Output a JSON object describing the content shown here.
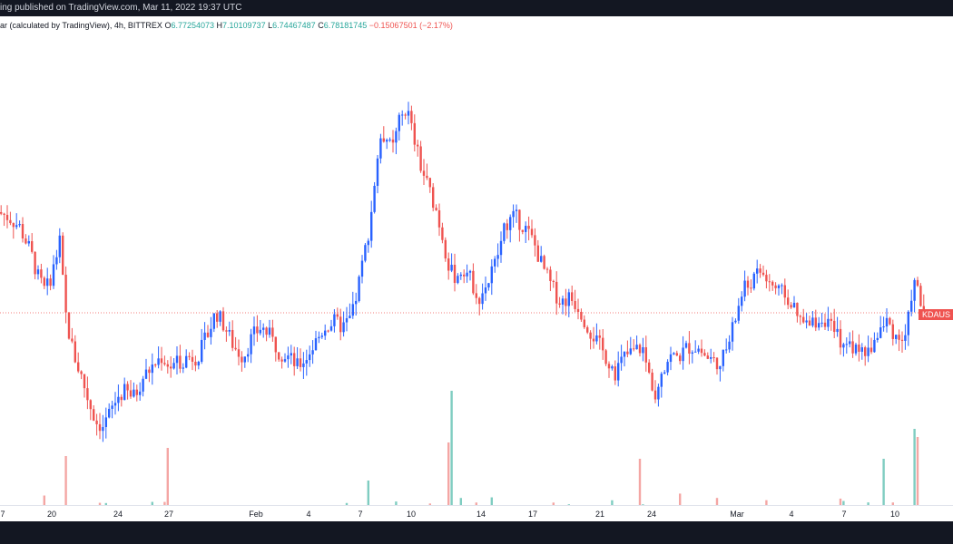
{
  "topbar": {
    "text": "ing published on TradingView.com, Mar 11, 2022 19:37 UTC"
  },
  "legend": {
    "prefix": "ar (calculated by TradingView), 4h, BITTREX",
    "open_label": "O",
    "open": "6.77254073",
    "high_label": "H",
    "high": "7.10109737",
    "low_label": "L",
    "low": "6.74467487",
    "close_label": "C",
    "close": "6.78181745",
    "change": "−0.15067501 (−2.17%)"
  },
  "price_tag": {
    "label": "KDAUS"
  },
  "colors": {
    "up": "#2962ff",
    "down": "#ef5350",
    "vol_up": "#7fcdc1",
    "vol_down": "#f4a6a4",
    "background": "#ffffff",
    "frame": "#131722"
  },
  "x_ticks": [
    "7",
    "20",
    "24",
    "27",
    "Feb",
    "4",
    "7",
    "10",
    "14",
    "17",
    "21",
    "24",
    "Mar",
    "4",
    "7",
    "10"
  ],
  "chart_data": {
    "type": "candlestick",
    "interval": "4h",
    "exchange": "BITTREX",
    "y_range": [
      4.0,
      12.0
    ],
    "last_price": 6.78181745,
    "series": [
      {
        "name": "price",
        "points": [
          [
            0,
            8.8
          ],
          [
            12,
            8.7
          ],
          [
            24,
            8.5
          ],
          [
            36,
            8.0
          ],
          [
            44,
            7.5
          ],
          [
            52,
            7.2
          ],
          [
            60,
            7.6
          ],
          [
            68,
            8.2
          ],
          [
            74,
            6.8
          ],
          [
            80,
            6.2
          ],
          [
            86,
            5.8
          ],
          [
            92,
            5.5
          ],
          [
            100,
            5.0
          ],
          [
            108,
            4.6
          ],
          [
            116,
            4.5
          ],
          [
            124,
            4.8
          ],
          [
            132,
            5.1
          ],
          [
            140,
            5.2
          ],
          [
            150,
            5.1
          ],
          [
            160,
            5.5
          ],
          [
            170,
            5.7
          ],
          [
            180,
            5.9
          ],
          [
            190,
            5.7
          ],
          [
            200,
            5.8
          ],
          [
            210,
            5.9
          ],
          [
            220,
            5.9
          ],
          [
            230,
            6.3
          ],
          [
            240,
            6.8
          ],
          [
            250,
            6.5
          ],
          [
            260,
            6.1
          ],
          [
            270,
            5.9
          ],
          [
            280,
            6.3
          ],
          [
            290,
            6.5
          ],
          [
            300,
            6.3
          ],
          [
            310,
            6.0
          ],
          [
            320,
            5.9
          ],
          [
            330,
            5.7
          ],
          [
            340,
            5.9
          ],
          [
            350,
            6.2
          ],
          [
            360,
            6.5
          ],
          [
            370,
            6.6
          ],
          [
            380,
            6.5
          ],
          [
            390,
            6.7
          ],
          [
            400,
            7.6
          ],
          [
            410,
            8.6
          ],
          [
            418,
            9.9
          ],
          [
            426,
            10.4
          ],
          [
            434,
            10.0
          ],
          [
            442,
            10.6
          ],
          [
            450,
            10.9
          ],
          [
            458,
            10.3
          ],
          [
            466,
            9.7
          ],
          [
            474,
            9.3
          ],
          [
            482,
            8.9
          ],
          [
            490,
            8.3
          ],
          [
            498,
            7.6
          ],
          [
            506,
            7.5
          ],
          [
            514,
            7.7
          ],
          [
            522,
            7.4
          ],
          [
            530,
            7.1
          ],
          [
            540,
            7.4
          ],
          [
            550,
            7.9
          ],
          [
            560,
            8.6
          ],
          [
            570,
            8.7
          ],
          [
            580,
            8.5
          ],
          [
            590,
            8.2
          ],
          [
            600,
            7.7
          ],
          [
            610,
            7.3
          ],
          [
            620,
            7.0
          ],
          [
            630,
            7.1
          ],
          [
            640,
            6.9
          ],
          [
            650,
            6.5
          ],
          [
            660,
            6.2
          ],
          [
            670,
            5.9
          ],
          [
            680,
            5.6
          ],
          [
            690,
            5.9
          ],
          [
            700,
            6.0
          ],
          [
            710,
            6.1
          ],
          [
            716,
            5.6
          ],
          [
            724,
            5.2
          ],
          [
            732,
            5.7
          ],
          [
            740,
            5.9
          ],
          [
            750,
            5.9
          ],
          [
            760,
            6.1
          ],
          [
            770,
            6.1
          ],
          [
            780,
            5.9
          ],
          [
            790,
            5.8
          ],
          [
            800,
            5.9
          ],
          [
            810,
            6.5
          ],
          [
            820,
            7.2
          ],
          [
            830,
            7.4
          ],
          [
            840,
            7.6
          ],
          [
            850,
            7.4
          ],
          [
            860,
            7.2
          ],
          [
            870,
            7.1
          ],
          [
            880,
            6.7
          ],
          [
            890,
            6.5
          ],
          [
            900,
            6.6
          ],
          [
            910,
            6.7
          ],
          [
            920,
            6.4
          ],
          [
            930,
            6.2
          ],
          [
            940,
            6.1
          ],
          [
            950,
            6.0
          ],
          [
            960,
            6.0
          ],
          [
            970,
            6.4
          ],
          [
            980,
            6.6
          ],
          [
            990,
            6.3
          ],
          [
            1000,
            6.2
          ],
          [
            1008,
            7.4
          ],
          [
            1014,
            7.2
          ],
          [
            1018,
            6.8
          ]
        ]
      }
    ],
    "volume_spikes": [
      [
        73,
        0.24
      ],
      [
        183,
        0.27
      ],
      [
        405,
        0.15
      ],
      [
        494,
        0.29
      ],
      [
        498,
        0.48
      ],
      [
        705,
        0.23
      ],
      [
        972,
        0.23
      ],
      [
        1006,
        0.34
      ],
      [
        1010,
        0.31
      ]
    ]
  }
}
